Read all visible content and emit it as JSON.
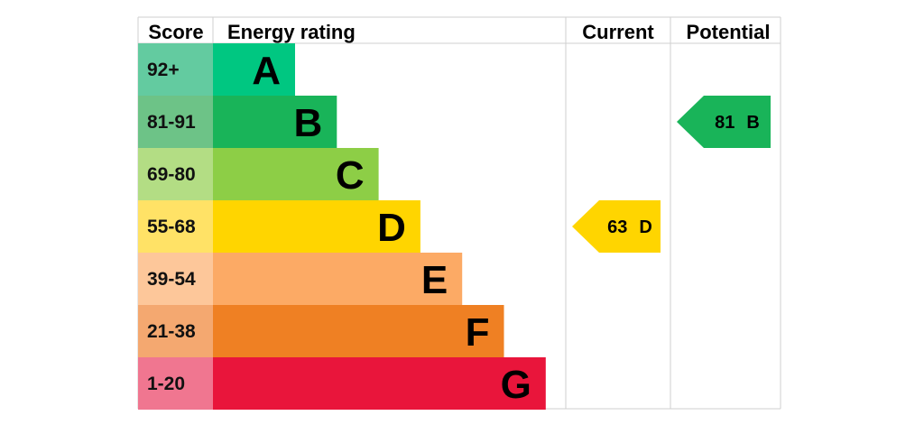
{
  "chart_data": {
    "type": "bar",
    "headers": {
      "score": "Score",
      "energy_rating": "Energy rating",
      "current": "Current",
      "potential": "Potential"
    },
    "bands": [
      {
        "letter": "A",
        "range": "92+",
        "color": "#00c781",
        "score_color": "#63cba0"
      },
      {
        "letter": "B",
        "range": "81-91",
        "color": "#19b459",
        "score_color": "#6dc387"
      },
      {
        "letter": "C",
        "range": "69-80",
        "color": "#8dce46",
        "score_color": "#b3dd84"
      },
      {
        "letter": "D",
        "range": "55-68",
        "color": "#ffd500",
        "score_color": "#ffe266"
      },
      {
        "letter": "E",
        "range": "39-54",
        "color": "#fcaa65",
        "score_color": "#fdc79a"
      },
      {
        "letter": "F",
        "range": "21-38",
        "color": "#ef8023",
        "score_color": "#f4a870"
      },
      {
        "letter": "G",
        "range": "1-20",
        "color": "#e9153b",
        "score_color": "#f07690"
      }
    ],
    "current": {
      "value": 63,
      "letter": "D",
      "color": "#ffd500"
    },
    "potential": {
      "value": 81,
      "letter": "B",
      "color": "#19b459"
    }
  }
}
